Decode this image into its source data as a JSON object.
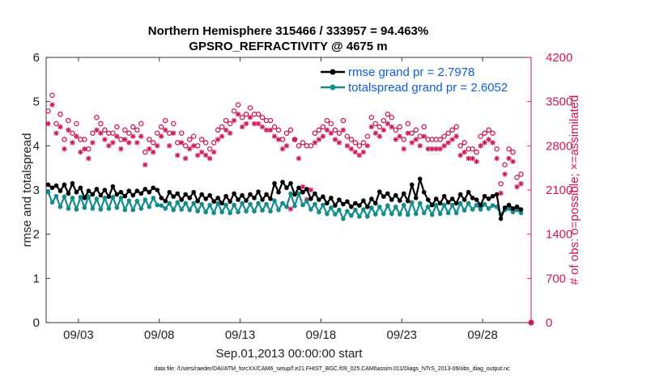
{
  "chart_data": {
    "type": "line",
    "title": "Northern Hemisphere 315466 / 333957 = 94.463%",
    "subtitle": "GPSRO_REFRACTIVITY @ 4675 m",
    "xlabel": "Sep.01,2013 00:00:00 start",
    "ylabel": "rmse and totalspread",
    "y2label": "# of obs: o=possible; ×=assimilated",
    "footnote": "data file: /Users/raeder/DAI/ATM_forcXX/CAM6_setup/f.e21.FHIST_BGC.f09_025.CAM6assim.011/Diags_NTrS_2013-09/obs_diag_output.nc",
    "xlim": [
      1,
      31
    ],
    "ylim": [
      0,
      6
    ],
    "y2lim": [
      0,
      4200
    ],
    "x_ticks": [
      3,
      8,
      13,
      18,
      23,
      28
    ],
    "x_tick_labels": [
      "09/03",
      "09/08",
      "09/13",
      "09/18",
      "09/23",
      "09/28"
    ],
    "y_ticks": [
      0,
      1,
      2,
      3,
      4,
      5,
      6
    ],
    "y2_ticks": [
      0,
      700,
      1400,
      2100,
      2800,
      3500,
      4200
    ],
    "legend": {
      "position": "top-right",
      "entries": [
        "rmse grand pr = 2.7978",
        "totalspread grand pr = 2.6052"
      ]
    },
    "colors": {
      "rmse": "#000000",
      "totalspread": "#138c8c",
      "obs": "#d0155a",
      "legend_text": "#0b5fd8",
      "right_axis": "#d0155a"
    },
    "x": [
      1.125,
      1.375,
      1.625,
      1.875,
      2.125,
      2.375,
      2.625,
      2.875,
      3.125,
      3.375,
      3.625,
      3.875,
      4.125,
      4.375,
      4.625,
      4.875,
      5.125,
      5.375,
      5.625,
      5.875,
      6.125,
      6.375,
      6.625,
      6.875,
      7.125,
      7.375,
      7.625,
      7.875,
      8.125,
      8.375,
      8.625,
      8.875,
      9.125,
      9.375,
      9.625,
      9.875,
      10.125,
      10.375,
      10.625,
      10.875,
      11.125,
      11.375,
      11.625,
      11.875,
      12.125,
      12.375,
      12.625,
      12.875,
      13.125,
      13.375,
      13.625,
      13.875,
      14.125,
      14.375,
      14.625,
      14.875,
      15.125,
      15.375,
      15.625,
      15.875,
      16.125,
      16.375,
      16.625,
      16.875,
      17.125,
      17.375,
      17.625,
      17.875,
      18.125,
      18.375,
      18.625,
      18.875,
      19.125,
      19.375,
      19.625,
      19.875,
      20.125,
      20.375,
      20.625,
      20.875,
      21.125,
      21.375,
      21.625,
      21.875,
      22.125,
      22.375,
      22.625,
      22.875,
      23.125,
      23.375,
      23.625,
      23.875,
      24.125,
      24.375,
      24.625,
      24.875,
      25.125,
      25.375,
      25.625,
      25.875,
      26.125,
      26.375,
      26.625,
      26.875,
      27.125,
      27.375,
      27.625,
      27.875,
      28.125,
      28.375,
      28.625,
      28.875,
      29.125,
      29.375,
      29.625,
      29.875,
      30.125,
      30.375
    ],
    "series": [
      {
        "name": "rmse",
        "values": [
          3.12,
          3.05,
          3.1,
          2.98,
          3.12,
          2.92,
          3.15,
          2.95,
          3.05,
          2.82,
          2.98,
          2.9,
          3.02,
          2.88,
          3.0,
          2.85,
          3.08,
          2.9,
          2.95,
          2.86,
          2.98,
          2.88,
          2.98,
          2.92,
          3.02,
          2.95,
          3.05,
          3.0,
          2.82,
          2.75,
          2.95,
          2.85,
          2.92,
          2.78,
          2.9,
          2.82,
          2.95,
          2.75,
          2.9,
          2.8,
          2.88,
          2.74,
          2.82,
          2.7,
          2.86,
          2.74,
          2.92,
          2.78,
          2.88,
          2.76,
          2.9,
          2.82,
          2.96,
          2.78,
          2.9,
          2.8,
          3.15,
          2.95,
          3.18,
          3.05,
          3.15,
          2.9,
          3.05,
          2.95,
          3.02,
          2.8,
          2.92,
          2.78,
          2.85,
          2.7,
          2.82,
          2.65,
          2.78,
          2.68,
          2.74,
          2.62,
          2.7,
          2.65,
          2.76,
          2.62,
          2.8,
          2.7,
          2.96,
          2.85,
          2.92,
          2.78,
          2.88,
          2.76,
          2.92,
          2.75,
          3.12,
          2.82,
          3.25,
          2.95,
          2.78,
          2.66,
          2.8,
          2.7,
          2.86,
          2.72,
          2.8,
          2.7,
          2.9,
          2.78,
          2.95,
          2.82,
          2.78,
          2.66,
          2.86,
          2.8,
          2.86,
          2.9,
          2.35,
          2.6,
          2.66,
          2.58,
          2.62,
          2.56
        ]
      },
      {
        "name": "totalspread",
        "values": [
          2.95,
          2.72,
          2.86,
          2.62,
          2.85,
          2.58,
          2.82,
          2.56,
          2.84,
          2.6,
          2.85,
          2.58,
          2.8,
          2.56,
          2.82,
          2.58,
          2.84,
          2.6,
          2.82,
          2.55,
          2.76,
          2.55,
          2.75,
          2.58,
          2.78,
          2.62,
          2.82,
          2.66,
          2.65,
          2.58,
          2.7,
          2.55,
          2.72,
          2.56,
          2.7,
          2.55,
          2.7,
          2.52,
          2.68,
          2.5,
          2.66,
          2.48,
          2.7,
          2.5,
          2.66,
          2.48,
          2.66,
          2.5,
          2.7,
          2.52,
          2.68,
          2.52,
          2.7,
          2.54,
          2.68,
          2.52,
          2.76,
          2.55,
          2.7,
          2.62,
          2.92,
          2.64,
          2.92,
          2.66,
          2.75,
          2.56,
          2.68,
          2.5,
          2.66,
          2.46,
          2.6,
          2.45,
          2.55,
          2.35,
          2.52,
          2.42,
          2.55,
          2.4,
          2.56,
          2.4,
          2.6,
          2.45,
          2.62,
          2.46,
          2.65,
          2.46,
          2.62,
          2.45,
          2.66,
          2.44,
          2.72,
          2.46,
          2.7,
          2.48,
          2.62,
          2.44,
          2.66,
          2.46,
          2.66,
          2.48,
          2.66,
          2.48,
          2.7,
          2.54,
          2.7,
          2.56,
          2.66,
          2.56,
          2.68,
          2.58,
          2.65,
          2.62,
          2.45,
          2.55,
          2.58,
          2.5,
          2.55,
          2.48
        ]
      }
    ],
    "obs_possible": [
      3350,
      3600,
      3150,
      3300,
      2900,
      3200,
      3000,
      3150,
      2900,
      2900,
      2750,
      3000,
      3250,
      3150,
      3050,
      3000,
      3000,
      3100,
      2900,
      3050,
      3000,
      3100,
      3050,
      3150,
      2700,
      2900,
      2850,
      3000,
      3100,
      3200,
      3000,
      3150,
      2850,
      3000,
      2800,
      2900,
      2950,
      2800,
      2900,
      2850,
      2750,
      2850,
      3050,
      3100,
      3200,
      3150,
      3350,
      3450,
      3250,
      3300,
      3400,
      3300,
      3300,
      3250,
      3200,
      3200,
      3100,
      3050,
      2900,
      3000,
      3050,
      2900,
      2800,
      2850,
      2800,
      2800,
      3000,
      3050,
      3100,
      3200,
      3150,
      3050,
      3000,
      3200,
      2950,
      2900,
      2850,
      2800,
      2850,
      2950,
      3250,
      3150,
      3100,
      3200,
      3300,
      3250,
      3050,
      3100,
      2900,
      3150,
      3000,
      3050,
      2950,
      3100,
      2900,
      2900,
      2900,
      2900,
      2950,
      3000,
      3050,
      3100,
      2800,
      2850,
      2750,
      2750,
      2700,
      2950,
      3000,
      3050,
      3000,
      2750,
      2200,
      2500,
      2750,
      2700,
      2300,
      2350
    ],
    "obs_assimilated": [
      3150,
      3450,
      3000,
      3100,
      2750,
      3050,
      2850,
      2950,
      2700,
      2750,
      2600,
      2850,
      3050,
      3000,
      2900,
      2800,
      2850,
      2950,
      2750,
      2900,
      2850,
      2950,
      2850,
      2950,
      2500,
      2750,
      2700,
      2800,
      2950,
      3050,
      2800,
      3000,
      2650,
      2850,
      2600,
      2750,
      2800,
      2650,
      2700,
      2650,
      2600,
      2700,
      2900,
      2950,
      3050,
      3000,
      3200,
      3300,
      3100,
      3150,
      3250,
      3150,
      3150,
      3100,
      3050,
      3050,
      2950,
      2900,
      2750,
      2800,
      1800,
      2900,
      2600,
      2150,
      1950,
      2100,
      2850,
      2900,
      2950,
      3050,
      3000,
      2900,
      2850,
      3050,
      2800,
      2750,
      2700,
      2650,
      2700,
      2800,
      3100,
      3000,
      2950,
      3050,
      3150,
      3100,
      2900,
      2950,
      2750,
      3000,
      2850,
      2900,
      2800,
      2950,
      2750,
      2750,
      2750,
      2750,
      2800,
      2850,
      2900,
      2950,
      2650,
      2700,
      2600,
      2600,
      2550,
      2800,
      2850,
      2900,
      2850,
      2600,
      2050,
      2350,
      2600,
      2550,
      2150,
      2200
    ]
  }
}
